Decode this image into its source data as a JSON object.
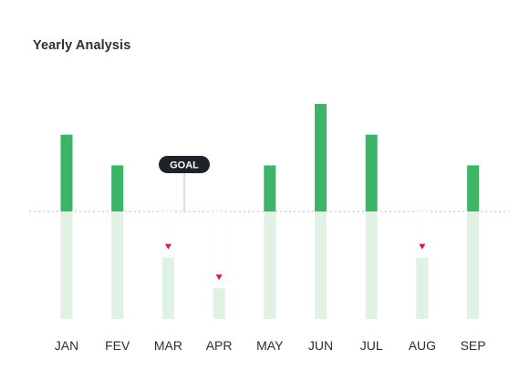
{
  "title": "Yearly Analysis",
  "goal_label": "GOAL",
  "colors": {
    "above": "#3db567",
    "below_bg": "#dff2e3",
    "below_bar": "#dff2e3",
    "marker": "#e5162b",
    "goal_badge": "#1f2329",
    "goal_line": "#c5c9ce"
  },
  "chart_data": {
    "type": "bar",
    "title": "Yearly Analysis",
    "categories": [
      "JAN",
      "FEV",
      "MAR",
      "APR",
      "MAY",
      "JUN",
      "JUL",
      "AUG",
      "SEP"
    ],
    "goal": 0,
    "ylim": [
      -70,
      70
    ],
    "values": [
      50,
      30,
      -30,
      -50,
      30,
      70,
      50,
      -30,
      30
    ],
    "below_goal_markers": [
      "MAR",
      "APR",
      "AUG"
    ],
    "grid": false
  }
}
